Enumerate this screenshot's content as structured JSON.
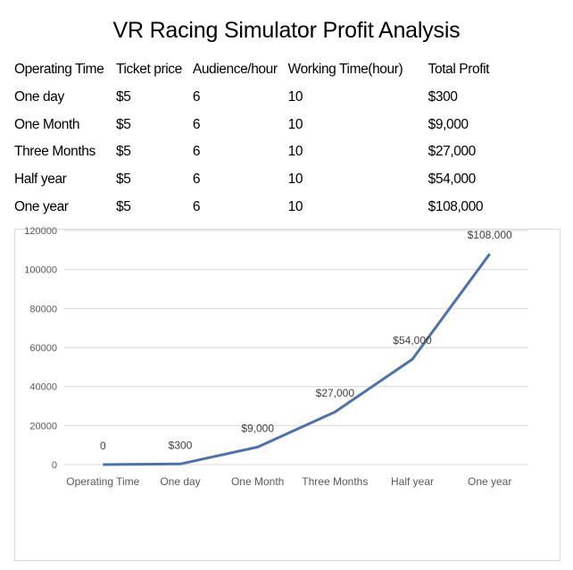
{
  "title": "VR Racing Simulator Profit Analysis",
  "table": {
    "headers": [
      "Operating Time",
      "Ticket price",
      "Audience/hour",
      "Working Time(hour)",
      "Total Profit"
    ],
    "rows": [
      [
        "One day",
        "$5",
        "6",
        "10",
        "$300"
      ],
      [
        "One Month",
        "$5",
        "6",
        "10",
        "$9,000"
      ],
      [
        "Three Months",
        "$5",
        "6",
        "10",
        "$27,000"
      ],
      [
        "Half year",
        "$5",
        "6",
        "10",
        "$54,000"
      ],
      [
        "One year",
        "$5",
        "6",
        "10",
        "$108,000"
      ]
    ]
  },
  "chart_data": {
    "type": "line",
    "categories": [
      "Operating Time",
      "One day",
      "One Month",
      "Three Months",
      "Half year",
      "One year"
    ],
    "values": [
      0,
      300,
      9000,
      27000,
      54000,
      108000
    ],
    "data_labels": [
      "0",
      "$300",
      "$9,000",
      "$27,000",
      "$54,000",
      "$108,000"
    ],
    "ylim": [
      0,
      120000
    ],
    "yticks": [
      0,
      20000,
      40000,
      60000,
      80000,
      100000,
      120000
    ],
    "ytick_labels": [
      "0",
      "20000",
      "40000",
      "60000",
      "80000",
      "100000",
      "120000"
    ],
    "grid": true,
    "line_color": "#4a72b0"
  }
}
